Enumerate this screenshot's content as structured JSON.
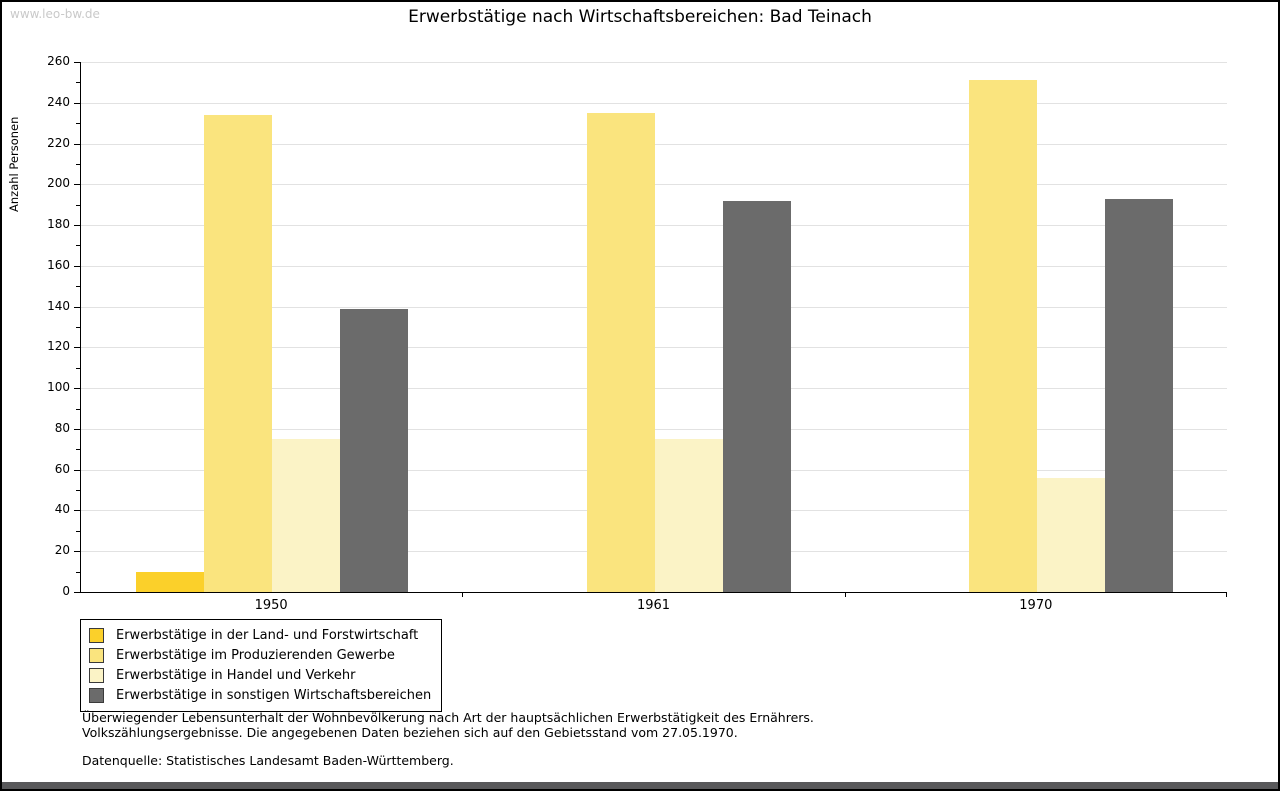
{
  "watermark": "www.leo-bw.de",
  "title": "Erwerbstätige nach Wirtschaftsbereichen: Bad Teinach",
  "chart_data": {
    "type": "bar",
    "title": "Erwerbstätige nach Wirtschaftsbereichen: Bad Teinach",
    "xlabel": "",
    "ylabel": "Anzahl Personen",
    "categories": [
      "1950",
      "1961",
      "1970"
    ],
    "series": [
      {
        "name": "Erwerbstätige in der Land- und Forstwirtschaft",
        "color": "#fbd02a",
        "values": [
          10,
          0,
          0
        ]
      },
      {
        "name": "Erwerbstätige im Produzierenden Gewerbe",
        "color": "#fae47e",
        "values": [
          234,
          235,
          251
        ]
      },
      {
        "name": "Erwerbstätige in Handel und Verkehr",
        "color": "#fbf3c6",
        "values": [
          75,
          75,
          56
        ]
      },
      {
        "name": "Erwerbstätige in sonstigen Wirtschaftsbereichen",
        "color": "#6b6b6b",
        "values": [
          139,
          192,
          193
        ]
      }
    ],
    "ylim": [
      0,
      260
    ],
    "ytick_step": 20,
    "yminor_step": 10,
    "grid": true,
    "legend_position": "bottom-left",
    "colors": {
      "axis": "#000000",
      "grid": "#e2e2e2",
      "watermark": "#c9c9c9",
      "bottom_strip": "#58585a"
    }
  },
  "footer": {
    "line1": "Überwiegender Lebensunterhalt der Wohnbevölkerung nach Art der hauptsächlichen Erwerbstätigkeit des Ernährers.",
    "line2": "Volkszählungsergebnisse. Die angegebenen Daten beziehen sich auf den Gebietsstand vom 27.05.1970.",
    "source": "Datenquelle: Statistisches Landesamt Baden-Württemberg."
  }
}
